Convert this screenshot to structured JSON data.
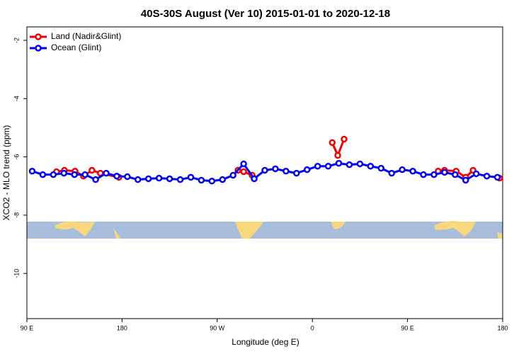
{
  "chart_data": {
    "type": "line",
    "title": "40S-30S August (Ver 10)   2015-01-01 to 2020-12-18",
    "xlabel": "Longitude (deg E)",
    "ylabel": "XCO2 - MLO trend (ppm)",
    "xlim": [
      90,
      540
    ],
    "ylim": [
      -11.55,
      -1.54
    ],
    "xticks": [
      {
        "value": 90,
        "label": "90 E"
      },
      180,
      {
        "value": 270,
        "label": "90 W"
      },
      {
        "value": 360,
        "label": "0"
      },
      {
        "value": 450,
        "label": "90 E"
      },
      {
        "value": 540,
        "label": "180"
      }
    ],
    "yticks": [
      -2,
      -4,
      -6,
      -8,
      -10
    ],
    "legend": "top-left",
    "series": [
      {
        "name": "Land (Nadir&Glint)",
        "color": "#ee0000",
        "x": [
          118,
          125.5,
          135.5,
          143.5,
          151.5,
          159.5,
          177,
          230,
          289.6,
          295,
          303,
          340,
          378.8,
          384,
          390,
          430,
          479,
          485,
          496,
          505,
          512,
          525,
          537
        ],
        "values": [
          -6.51,
          -6.46,
          -6.49,
          -6.66,
          -6.46,
          -6.56,
          -6.7,
          null,
          -6.46,
          -6.51,
          -6.63,
          null,
          -5.51,
          -5.95,
          -5.39,
          null,
          -6.49,
          -6.46,
          -6.49,
          -6.7,
          -6.46,
          null,
          -6.73
        ]
      },
      {
        "name": "Ocean (Glint)",
        "color": "#0000ee",
        "x": [
          95,
          105,
          115,
          125,
          135,
          145,
          155,
          165,
          175,
          185,
          195,
          205,
          215,
          225,
          235,
          245,
          255,
          265,
          275,
          285,
          295,
          305,
          315,
          325,
          335,
          345,
          355,
          365,
          375,
          385,
          395,
          405,
          415,
          425,
          435,
          445,
          455,
          465,
          475,
          485,
          495,
          505,
          515,
          525,
          535
        ],
        "values": [
          -6.49,
          -6.61,
          -6.61,
          -6.56,
          -6.61,
          -6.61,
          -6.78,
          -6.56,
          -6.66,
          -6.68,
          -6.78,
          -6.75,
          -6.73,
          -6.75,
          -6.78,
          -6.7,
          -6.8,
          -6.83,
          -6.78,
          -6.63,
          -6.24,
          -6.75,
          -6.46,
          -6.41,
          -6.49,
          -6.56,
          -6.44,
          -6.32,
          -6.32,
          -6.22,
          -6.27,
          -6.24,
          -6.32,
          -6.39,
          -6.56,
          -6.44,
          -6.49,
          -6.61,
          -6.61,
          -6.53,
          -6.61,
          -6.8,
          -6.58,
          -6.66,
          -6.7
        ]
      }
    ]
  }
}
